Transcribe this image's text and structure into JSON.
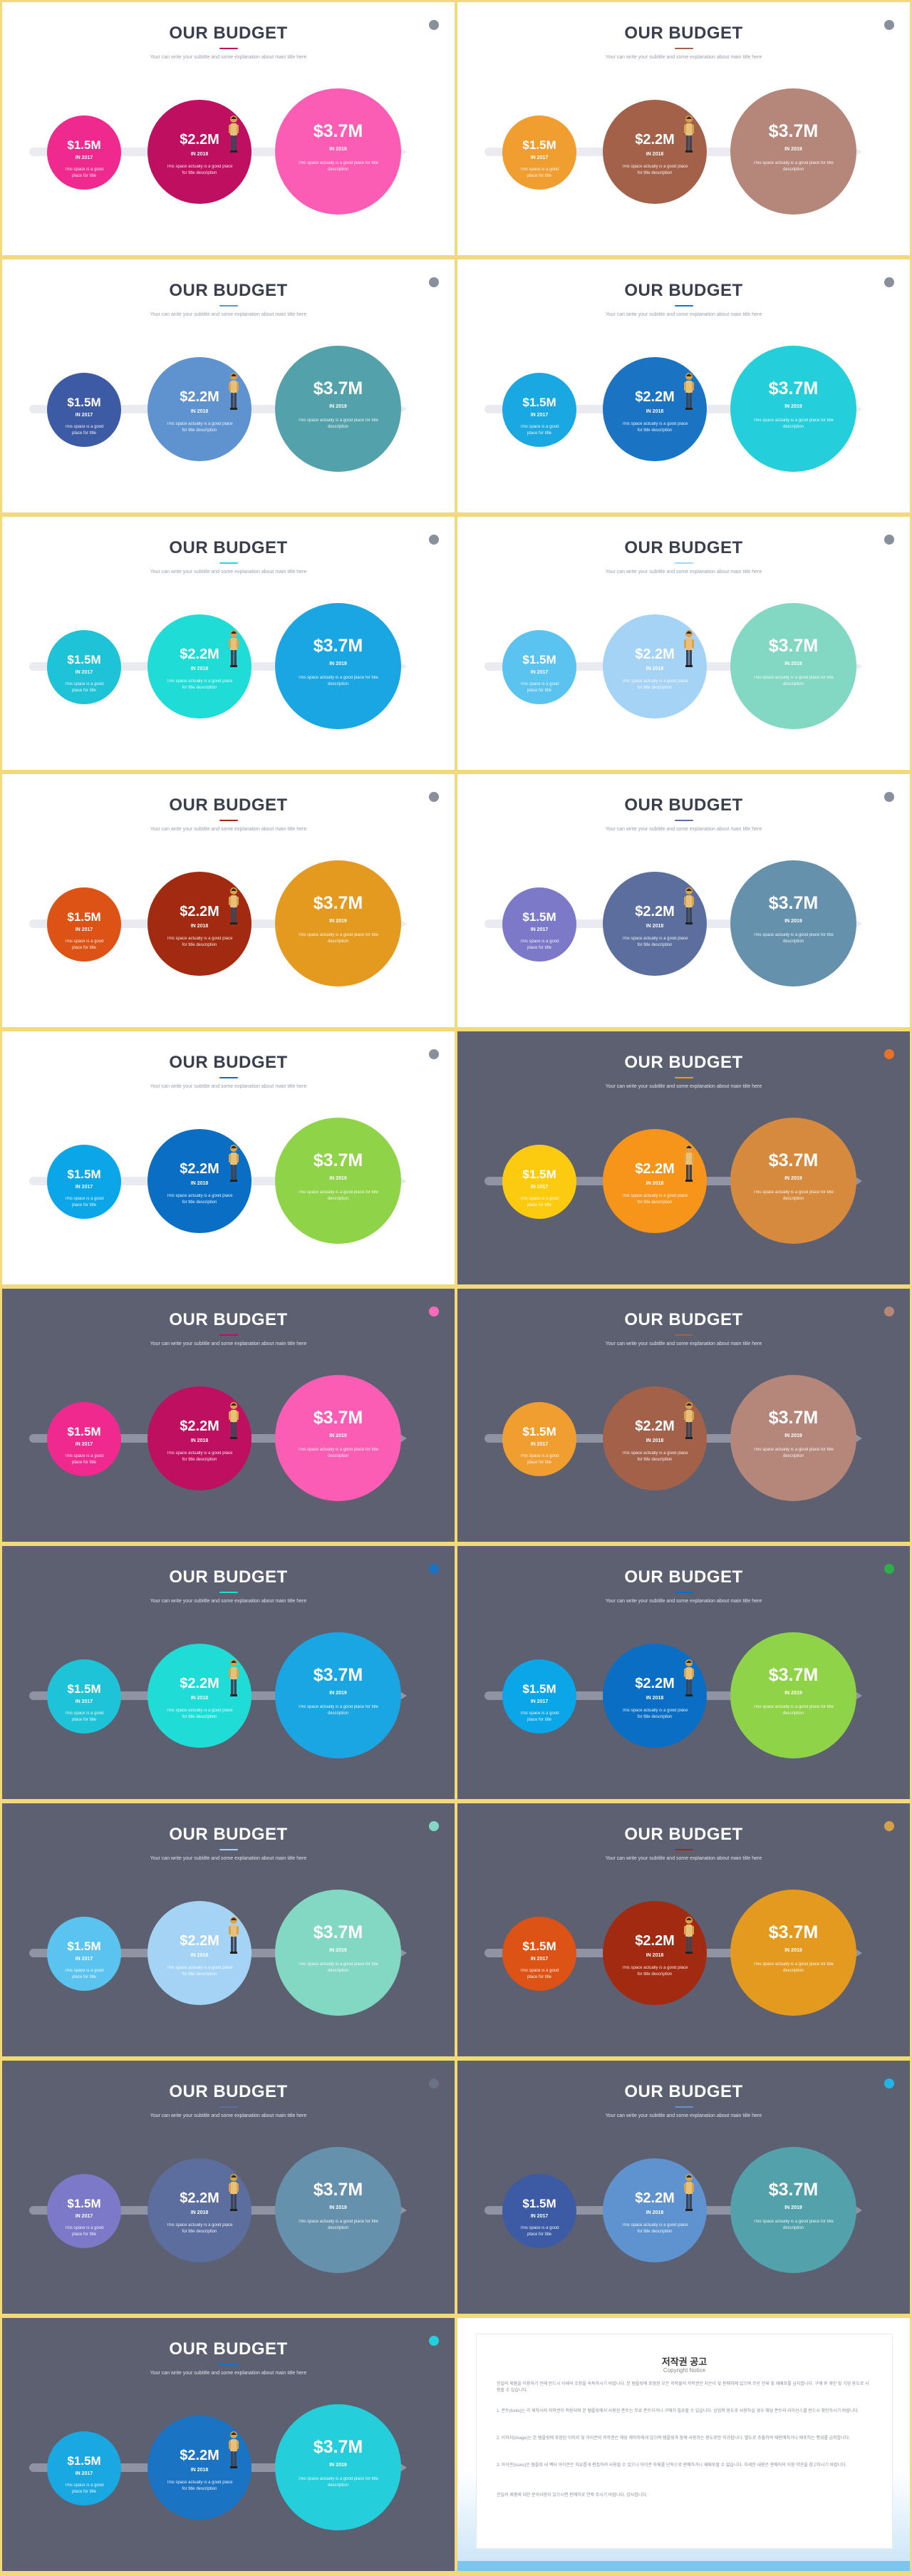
{
  "slide_text": {
    "title": "OUR BUDGET",
    "subtitle": "Your can write your subtitle and some explanation about main title here",
    "items": [
      {
        "amount": "$1.5M",
        "year": "IN 2017",
        "desc": "This space is a good place for title"
      },
      {
        "amount": "$2.2M",
        "year": "IN 2018",
        "desc": "This space actually is a good place for title description"
      },
      {
        "amount": "$3.7M",
        "year": "IN 2019",
        "desc": "This space actually is a good place for title description"
      }
    ]
  },
  "slides": [
    {
      "theme": "light",
      "colors": [
        "#f0298f",
        "#bf0f60",
        "#fb5db5"
      ],
      "accent": "#8a8f9c"
    },
    {
      "theme": "light",
      "colors": [
        "#f09e30",
        "#a3614a",
        "#b4877a"
      ],
      "accent": "#8a8f9c"
    },
    {
      "theme": "light",
      "colors": [
        "#3d5aa5",
        "#5e93cf",
        "#53a1aa"
      ],
      "accent": "#8a8f9c"
    },
    {
      "theme": "light",
      "colors": [
        "#1aa8e2",
        "#1b73c4",
        "#25cedb"
      ],
      "accent": "#8a8f9c"
    },
    {
      "theme": "light",
      "colors": [
        "#1ec3d7",
        "#20dcd7",
        "#1aa6e3"
      ],
      "accent": "#8a8f9c"
    },
    {
      "theme": "light",
      "colors": [
        "#5bc3ef",
        "#a4d3f6",
        "#82d8c2"
      ],
      "accent": "#8a8f9c"
    },
    {
      "theme": "light",
      "colors": [
        "#dd5215",
        "#a22a10",
        "#e49a1f"
      ],
      "accent": "#8a8f9c"
    },
    {
      "theme": "light",
      "colors": [
        "#7b79c8",
        "#5b6e9e",
        "#6591ad"
      ],
      "accent": "#8a8f9c"
    },
    {
      "theme": "light",
      "colors": [
        "#0aa6e8",
        "#0a6fc4",
        "#8fd348"
      ],
      "accent": "#8a8f9c"
    },
    {
      "theme": "dark",
      "colors": [
        "#fccb10",
        "#f6951a",
        "#d58a3e"
      ],
      "accent": "#e8712a"
    },
    {
      "theme": "dark",
      "colors": [
        "#f0298f",
        "#bf0f60",
        "#fb5db5"
      ],
      "accent": "#fb6bb8"
    },
    {
      "theme": "dark",
      "colors": [
        "#f09e30",
        "#a3614a",
        "#b4877a"
      ],
      "accent": "#b4877a"
    },
    {
      "theme": "dark",
      "colors": [
        "#1ec3d7",
        "#20dcd7",
        "#1aa6e3"
      ],
      "accent": "#1a73c4"
    },
    {
      "theme": "dark",
      "colors": [
        "#0aa6e8",
        "#0a6fc4",
        "#8fd348"
      ],
      "accent": "#2eb049"
    },
    {
      "theme": "dark",
      "colors": [
        "#5bc3ef",
        "#a4d3f6",
        "#82d8c2"
      ],
      "accent": "#82d8c2"
    },
    {
      "theme": "dark",
      "colors": [
        "#dd5215",
        "#a22a10",
        "#e49a1f"
      ],
      "accent": "#d8a046"
    },
    {
      "theme": "dark",
      "colors": [
        "#7b79c8",
        "#5b6e9e",
        "#6591ad"
      ],
      "accent": "#6b7285"
    },
    {
      "theme": "dark",
      "colors": [
        "#3d5aa5",
        "#5e93cf",
        "#53a1aa"
      ],
      "accent": "#1fb5e6"
    },
    {
      "theme": "dark",
      "colors": [
        "#1aa8e2",
        "#1b73c4",
        "#25cedb"
      ],
      "accent": "#25cedb"
    }
  ],
  "copyright": {
    "title": "저작권 공고",
    "subtitle": "Copyright Notice",
    "paragraphs": [
      "진일의 제품을 이용하기 전에 반드시 아래의 조항을 숙독하시기 바랍니다. 본 템플릿에 포함된 모든 저작물의 저작권은 지은이 및 판매처에 있으며 무단 전재 및 재배포를 금지합니다. 구매 후 개인 및 기업 용도로 사용할 수 있습니다.",
      "1. 폰트(fonts)는 각 제작사의 저작권이 적용되며 본 템플릿에서 사용된 폰트는 무료 폰트이거나 구매가 필요할 수 있습니다. 상업적 용도로 사용하실 경우 해당 폰트의 라이선스를 반드시 확인하시기 바랍니다.",
      "2. 이미지(image)는 본 템플릿에 포함된 이미지 및 아이콘의 저작권은 해당 제작자에게 있으며 템플릿과 함께 사용하는 용도로만 허가됩니다. 별도로 추출하여 재판매하거나 배포하는 행위를 금지합니다.",
      "3. 아이콘(icons)은 템플릿 내 벡터 아이콘은 자유롭게 편집하여 사용할 수 있으나 아이콘 자체를 단독으로 판매하거나 재배포할 수 없습니다. 자세한 내용은 판매처의 이용 약관을 참고하시기 바랍니다.",
      "진일의 제품에 대한 문의사항이 있으시면 판매처로 연락 주시기 바랍니다. 감사합니다."
    ]
  }
}
